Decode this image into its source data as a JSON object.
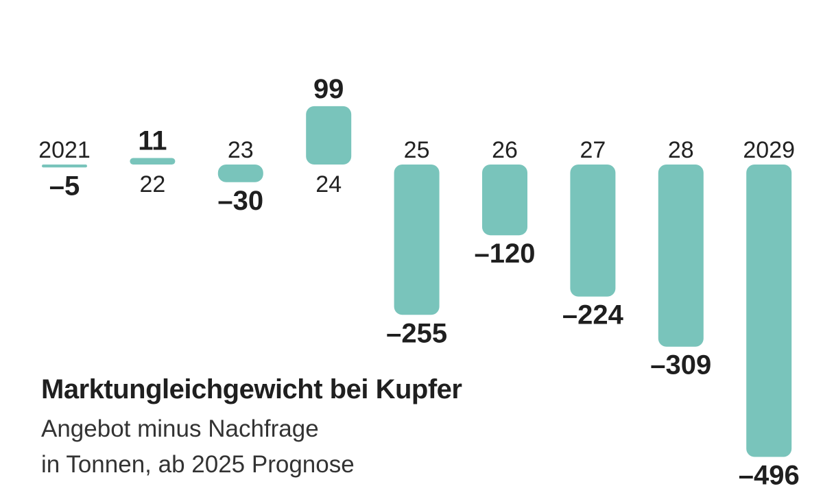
{
  "chart_data": {
    "type": "bar",
    "title": "Marktungleichgewicht bei Kupfer",
    "subtitle_lines": [
      "Angebot minus Nachfrage",
      "in Tonnen, ab 2025 Prognose"
    ],
    "categories": [
      "2021",
      "22",
      "23",
      "24",
      "25",
      "26",
      "27",
      "28",
      "2029"
    ],
    "values": [
      -5,
      11,
      -30,
      99,
      -255,
      -120,
      -224,
      -309,
      -496
    ],
    "value_labels": [
      "–5",
      "11",
      "–30",
      "99",
      "–255",
      "–120",
      "–224",
      "–309",
      "–496"
    ],
    "bar_color": "#79c4bb",
    "grid": false,
    "legend": "none"
  }
}
